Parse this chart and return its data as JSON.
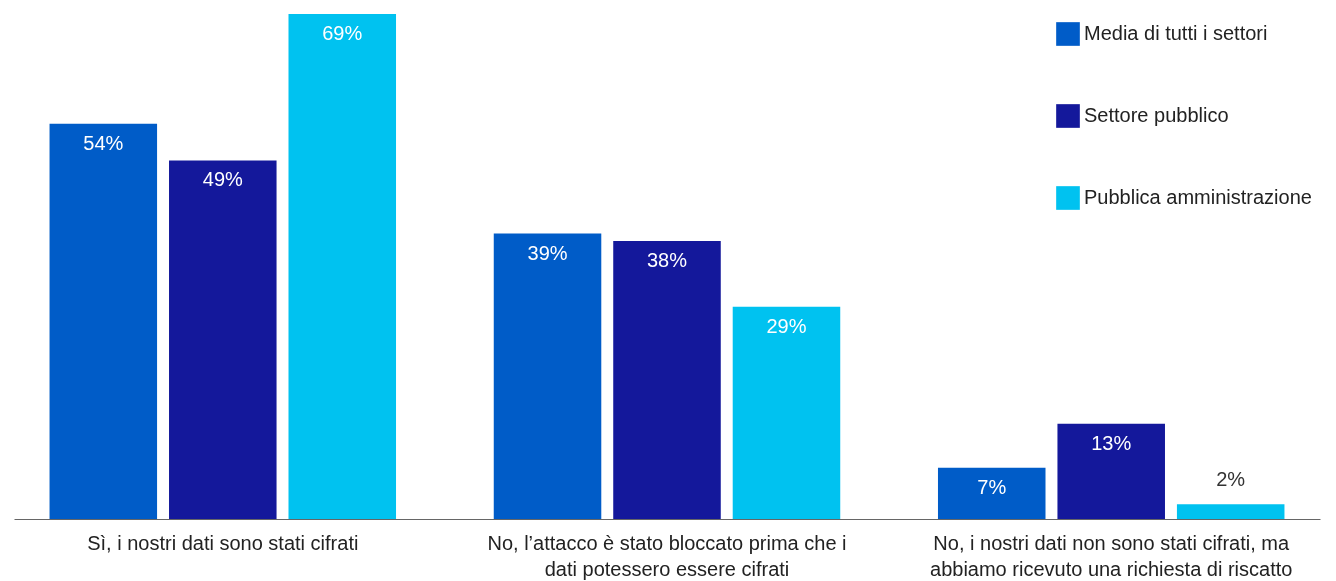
{
  "chart_data": {
    "type": "bar",
    "categories": [
      "Sì, i nostri dati sono stati cifrati",
      "No, l’attacco è stato bloccato prima che i dati potessero essere cifrati",
      "No, i nostri dati non sono stati cifrati, ma abbiamo ricevuto una richiesta di riscatto"
    ],
    "series": [
      {
        "name": "Media di tutti i settori",
        "color": "#005cc8",
        "values": [
          54,
          39,
          7
        ],
        "value_labels": [
          "54%",
          "39%",
          "7%"
        ]
      },
      {
        "name": "Settore pubblico",
        "color": "#14189b",
        "values": [
          49,
          38,
          13
        ],
        "value_labels": [
          "49%",
          "38%",
          "13%"
        ]
      },
      {
        "name": "Pubblica amministrazione",
        "color": "#00c2f0",
        "values": [
          69,
          29,
          2
        ],
        "value_labels": [
          "69%",
          "29%",
          "2%"
        ]
      }
    ],
    "legend": "top right"
  }
}
